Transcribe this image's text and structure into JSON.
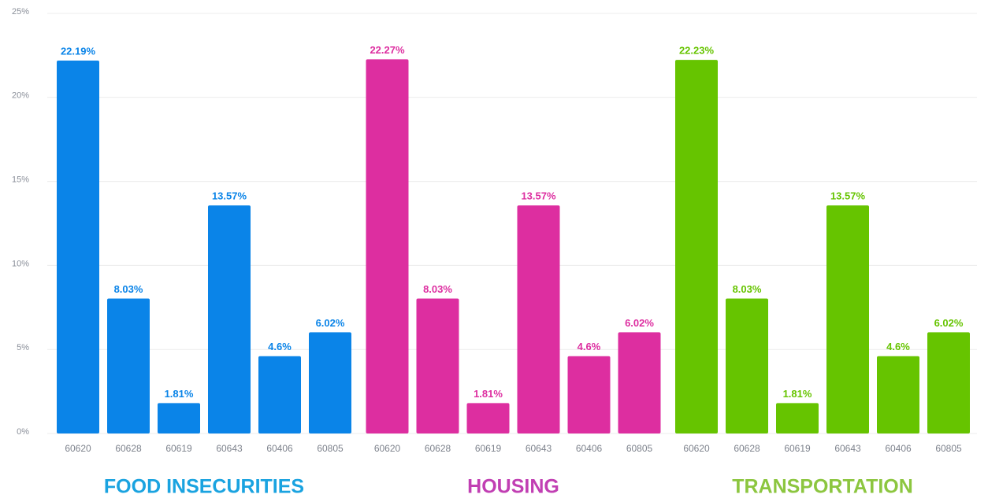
{
  "chart_data": {
    "type": "bar",
    "ylim": [
      0,
      25
    ],
    "yticks": [
      {
        "value": 0,
        "label": "0%"
      },
      {
        "value": 5,
        "label": "5%"
      },
      {
        "value": 10,
        "label": "10%"
      },
      {
        "value": 15,
        "label": "15%"
      },
      {
        "value": 20,
        "label": "20%"
      },
      {
        "value": 25,
        "label": "25%"
      }
    ],
    "grid": true,
    "groups": [
      {
        "name": "FOOD INSECURITIES",
        "color": "#0a84e8",
        "title_color": "#1aa3e0",
        "categories": [
          "60620",
          "60628",
          "60619",
          "60643",
          "60406",
          "60805"
        ],
        "values": [
          22.19,
          8.03,
          1.81,
          13.57,
          4.6,
          6.02
        ],
        "value_labels": [
          "22.19%",
          "8.03%",
          "1.81%",
          "13.57%",
          "4.6%",
          "6.02%"
        ]
      },
      {
        "name": "HOUSING",
        "color": "#dd2ea0",
        "title_color": "#c13fb3",
        "categories": [
          "60620",
          "60628",
          "60619",
          "60643",
          "60406",
          "60805"
        ],
        "values": [
          22.27,
          8.03,
          1.81,
          13.57,
          4.6,
          6.02
        ],
        "value_labels": [
          "22.27%",
          "8.03%",
          "1.81%",
          "13.57%",
          "4.6%",
          "6.02%"
        ]
      },
      {
        "name": "TRANSPORTATION",
        "color": "#66c400",
        "title_color": "#8cc63f",
        "categories": [
          "60620",
          "60628",
          "60619",
          "60643",
          "60406",
          "60805"
        ],
        "values": [
          22.23,
          8.03,
          1.81,
          13.57,
          4.6,
          6.02
        ],
        "value_labels": [
          "22.23%",
          "8.03%",
          "1.81%",
          "13.57%",
          "4.6%",
          "6.02%"
        ]
      }
    ]
  }
}
